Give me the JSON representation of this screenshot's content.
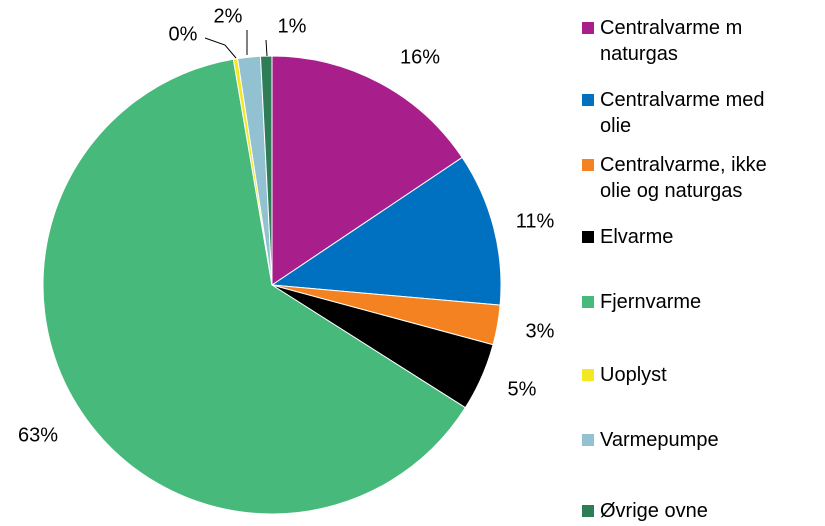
{
  "chart_data": {
    "type": "pie",
    "categories": [
      "Centralvarme m naturgas",
      "Centralvarme med olie",
      "Centralvarme, ikke olie og naturgas",
      "Elvarme",
      "Fjernvarme",
      "Uoplyst",
      "Varmepumpe",
      "Øvrige ovne"
    ],
    "values": [
      15.6,
      10.8,
      2.8,
      4.8,
      63.3,
      0.3,
      1.6,
      0.8
    ],
    "value_labels": [
      "16%",
      "11%",
      "3%",
      "5%",
      "63%",
      "0%",
      "2%",
      "1%"
    ],
    "colors": [
      "#a81f8c",
      "#0070c0",
      "#f58220",
      "#000000",
      "#47b97b",
      "#f4e823",
      "#92c1d2",
      "#2f7d57"
    ],
    "legend": "right"
  }
}
